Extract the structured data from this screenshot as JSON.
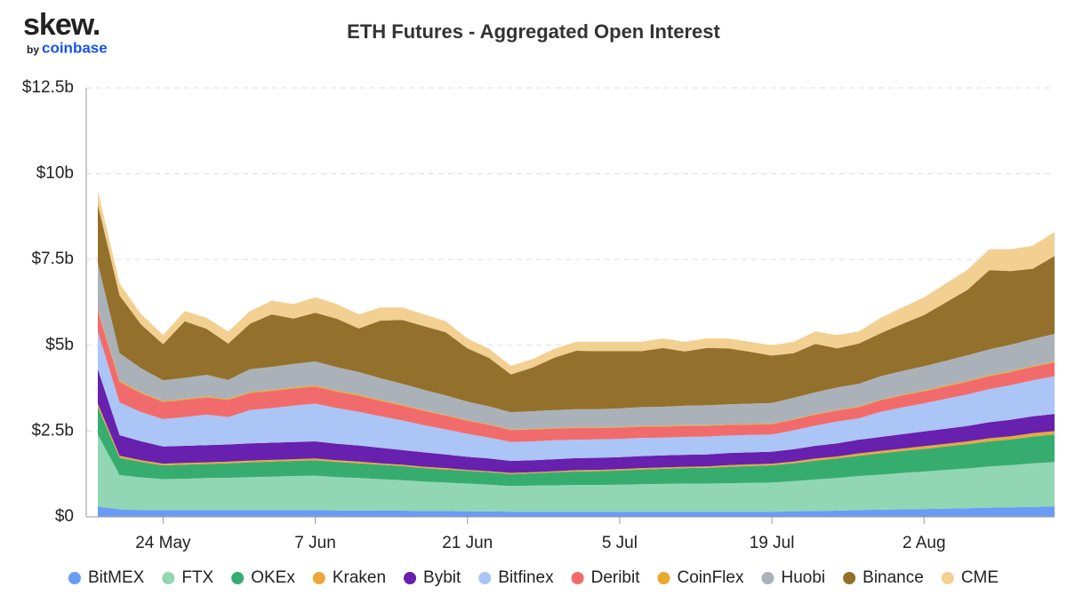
{
  "logo": {
    "name": "skew.",
    "by": "by",
    "company": "coinbase"
  },
  "chart_data": {
    "type": "stacked-area",
    "title": "ETH Futures - Aggregated Open Interest",
    "categories": [
      null,
      null,
      null,
      "24 May",
      null,
      null,
      null,
      null,
      null,
      null,
      "7 Jun",
      null,
      null,
      null,
      null,
      null,
      null,
      "21 Jun",
      null,
      null,
      null,
      null,
      null,
      null,
      "5 Jul",
      null,
      null,
      null,
      null,
      null,
      null,
      "19 Jul",
      null,
      null,
      null,
      null,
      null,
      null,
      "2 Aug",
      null,
      null,
      null,
      null,
      null,
      null
    ],
    "ylim": [
      0,
      12.5
    ],
    "yticks": [
      {
        "value": 0,
        "label": "$0"
      },
      {
        "value": 2.5,
        "label": "$2.5b"
      },
      {
        "value": 5,
        "label": "$5b"
      },
      {
        "value": 7.5,
        "label": "$7.5b"
      },
      {
        "value": 10,
        "label": "$10b"
      },
      {
        "value": 12.5,
        "label": "$12.5b"
      }
    ],
    "grid": true,
    "legend": "bottom",
    "series": [
      {
        "name": "BitMEX",
        "color": "#6a9cf6",
        "values": [
          0.3,
          0.22,
          0.2,
          0.2,
          0.2,
          0.2,
          0.2,
          0.2,
          0.2,
          0.2,
          0.2,
          0.19,
          0.19,
          0.18,
          0.18,
          0.17,
          0.17,
          0.16,
          0.16,
          0.15,
          0.15,
          0.15,
          0.15,
          0.15,
          0.15,
          0.15,
          0.15,
          0.15,
          0.15,
          0.15,
          0.15,
          0.15,
          0.16,
          0.17,
          0.18,
          0.2,
          0.21,
          0.22,
          0.23,
          0.24,
          0.25,
          0.27,
          0.28,
          0.29,
          0.3
        ]
      },
      {
        "name": "FTX",
        "color": "#92d6b4",
        "values": [
          2.1,
          1.0,
          0.95,
          0.9,
          0.91,
          0.93,
          0.94,
          0.96,
          0.97,
          0.99,
          1.0,
          0.97,
          0.94,
          0.92,
          0.89,
          0.86,
          0.83,
          0.81,
          0.78,
          0.75,
          0.76,
          0.77,
          0.78,
          0.78,
          0.79,
          0.8,
          0.81,
          0.82,
          0.82,
          0.83,
          0.84,
          0.85,
          0.88,
          0.92,
          0.95,
          0.99,
          1.02,
          1.06,
          1.09,
          1.13,
          1.16,
          1.2,
          1.23,
          1.27,
          1.3
        ]
      },
      {
        "name": "OKEx",
        "color": "#36ad6f",
        "values": [
          0.8,
          0.5,
          0.45,
          0.4,
          0.41,
          0.41,
          0.42,
          0.43,
          0.44,
          0.44,
          0.45,
          0.44,
          0.43,
          0.42,
          0.41,
          0.39,
          0.38,
          0.37,
          0.36,
          0.35,
          0.36,
          0.38,
          0.39,
          0.4,
          0.41,
          0.43,
          0.44,
          0.45,
          0.46,
          0.48,
          0.49,
          0.5,
          0.52,
          0.55,
          0.57,
          0.59,
          0.62,
          0.64,
          0.66,
          0.68,
          0.71,
          0.73,
          0.75,
          0.78,
          0.8
        ]
      },
      {
        "name": "Kraken",
        "color": "#e9a93a",
        "values": [
          0.1,
          0.06,
          0.05,
          0.05,
          0.05,
          0.05,
          0.05,
          0.05,
          0.05,
          0.05,
          0.05,
          0.05,
          0.05,
          0.04,
          0.04,
          0.04,
          0.04,
          0.03,
          0.03,
          0.03,
          0.03,
          0.03,
          0.04,
          0.04,
          0.04,
          0.04,
          0.04,
          0.04,
          0.04,
          0.05,
          0.05,
          0.05,
          0.05,
          0.06,
          0.06,
          0.07,
          0.07,
          0.07,
          0.08,
          0.08,
          0.08,
          0.09,
          0.09,
          0.1,
          0.1
        ]
      },
      {
        "name": "Bybit",
        "color": "#6820ae",
        "values": [
          1.0,
          0.6,
          0.55,
          0.5,
          0.5,
          0.5,
          0.5,
          0.5,
          0.5,
          0.5,
          0.5,
          0.48,
          0.47,
          0.45,
          0.43,
          0.42,
          0.4,
          0.38,
          0.37,
          0.35,
          0.35,
          0.35,
          0.35,
          0.35,
          0.35,
          0.35,
          0.35,
          0.35,
          0.35,
          0.35,
          0.35,
          0.35,
          0.36,
          0.37,
          0.38,
          0.4,
          0.41,
          0.42,
          0.43,
          0.44,
          0.45,
          0.47,
          0.48,
          0.49,
          0.5
        ]
      },
      {
        "name": "Bitfinex",
        "color": "#abc5f7",
        "values": [
          1.1,
          0.95,
          0.85,
          0.8,
          0.84,
          0.89,
          0.8,
          0.97,
          1.01,
          1.06,
          1.1,
          1.04,
          0.98,
          0.92,
          0.86,
          0.79,
          0.73,
          0.67,
          0.61,
          0.55,
          0.55,
          0.55,
          0.54,
          0.54,
          0.53,
          0.53,
          0.52,
          0.52,
          0.52,
          0.51,
          0.51,
          0.5,
          0.55,
          0.59,
          0.64,
          0.62,
          0.73,
          0.78,
          0.82,
          0.87,
          0.92,
          0.96,
          1.01,
          1.05,
          1.1
        ]
      },
      {
        "name": "Deribit",
        "color": "#f26b6c",
        "values": [
          0.6,
          0.6,
          0.55,
          0.5,
          0.5,
          0.5,
          0.5,
          0.5,
          0.5,
          0.5,
          0.5,
          0.48,
          0.47,
          0.45,
          0.43,
          0.42,
          0.4,
          0.38,
          0.37,
          0.35,
          0.35,
          0.34,
          0.34,
          0.33,
          0.33,
          0.33,
          0.32,
          0.32,
          0.31,
          0.31,
          0.3,
          0.3,
          0.31,
          0.32,
          0.32,
          0.33,
          0.34,
          0.35,
          0.35,
          0.36,
          0.37,
          0.38,
          0.38,
          0.39,
          0.4
        ]
      },
      {
        "name": "CoinFlex",
        "color": "#e8aa2d",
        "values": [
          0.05,
          0.04,
          0.03,
          0.03,
          0.03,
          0.03,
          0.03,
          0.03,
          0.03,
          0.03,
          0.03,
          0.03,
          0.03,
          0.03,
          0.03,
          0.02,
          0.02,
          0.02,
          0.02,
          0.02,
          0.02,
          0.02,
          0.02,
          0.02,
          0.02,
          0.02,
          0.02,
          0.02,
          0.02,
          0.02,
          0.02,
          0.02,
          0.02,
          0.02,
          0.02,
          0.02,
          0.02,
          0.02,
          0.02,
          0.03,
          0.03,
          0.03,
          0.03,
          0.03,
          0.03
        ]
      },
      {
        "name": "Huobi",
        "color": "#aab1b9",
        "values": [
          1.35,
          0.8,
          0.7,
          0.6,
          0.61,
          0.63,
          0.55,
          0.66,
          0.67,
          0.69,
          0.7,
          0.68,
          0.66,
          0.63,
          0.61,
          0.59,
          0.57,
          0.54,
          0.52,
          0.5,
          0.51,
          0.52,
          0.53,
          0.53,
          0.54,
          0.55,
          0.56,
          0.57,
          0.58,
          0.58,
          0.59,
          0.6,
          0.62,
          0.63,
          0.65,
          0.66,
          0.68,
          0.69,
          0.71,
          0.72,
          0.74,
          0.75,
          0.77,
          0.78,
          0.8
        ]
      },
      {
        "name": "Binance",
        "color": "#93702c",
        "values": [
          1.7,
          1.68,
          1.27,
          1.05,
          1.65,
          1.34,
          1.06,
          1.33,
          1.53,
          1.32,
          1.42,
          1.41,
          1.27,
          1.68,
          1.86,
          1.86,
          1.84,
          1.55,
          1.41,
          1.1,
          1.27,
          1.53,
          1.7,
          1.69,
          1.67,
          1.63,
          1.71,
          1.58,
          1.67,
          1.63,
          1.51,
          1.38,
          1.3,
          1.41,
          1.14,
          1.17,
          1.25,
          1.37,
          1.49,
          1.7,
          1.91,
          2.31,
          2.14,
          2.05,
          2.27
        ]
      },
      {
        "name": "CME",
        "color": "#f2d091",
        "values": [
          0.4,
          0.35,
          0.3,
          0.27,
          0.3,
          0.32,
          0.35,
          0.37,
          0.4,
          0.42,
          0.45,
          0.43,
          0.41,
          0.38,
          0.36,
          0.34,
          0.32,
          0.29,
          0.27,
          0.25,
          0.25,
          0.26,
          0.26,
          0.27,
          0.27,
          0.27,
          0.28,
          0.28,
          0.28,
          0.29,
          0.29,
          0.3,
          0.33,
          0.36,
          0.39,
          0.35,
          0.45,
          0.48,
          0.52,
          0.55,
          0.58,
          0.61,
          0.64,
          0.67,
          0.7
        ]
      }
    ]
  }
}
